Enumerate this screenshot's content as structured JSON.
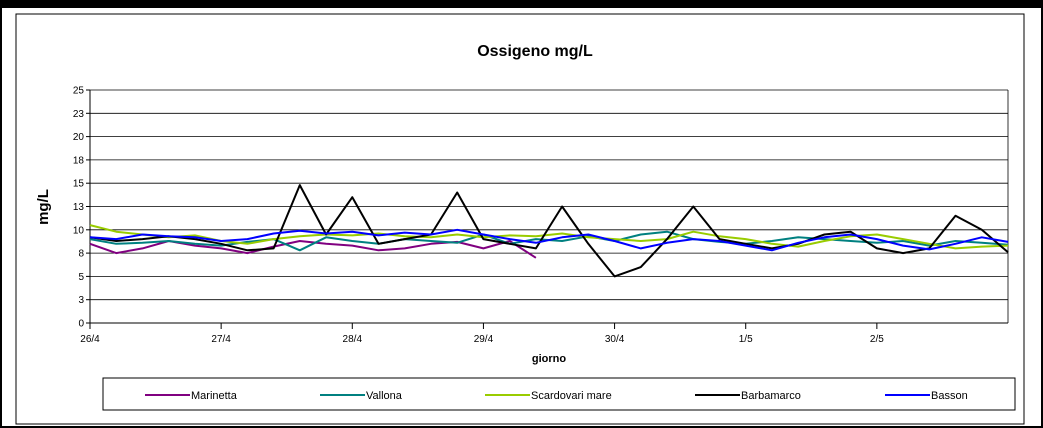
{
  "chart_data": {
    "type": "line",
    "title": "Ossigeno mg/L",
    "y_label": "mg/L",
    "x_label": "giorno",
    "x": [
      0,
      0.2,
      0.4,
      0.6,
      0.8,
      1.0,
      1.2,
      1.4,
      1.6,
      1.8,
      2.0,
      2.2,
      2.4,
      2.6,
      2.8,
      3.0,
      3.2,
      3.4,
      3.6,
      3.8,
      4.0,
      4.2,
      4.4,
      4.6,
      4.8,
      5.0,
      5.2,
      5.4,
      5.6,
      5.8,
      6.0,
      6.2,
      6.4,
      6.6,
      6.8,
      7.0
    ],
    "xlim": [
      0,
      7
    ],
    "xticks": [
      {
        "value": 0,
        "label": "26/4"
      },
      {
        "value": 1,
        "label": "27/4"
      },
      {
        "value": 2,
        "label": "28/4"
      },
      {
        "value": 3,
        "label": "29/4"
      },
      {
        "value": 4,
        "label": "30/4"
      },
      {
        "value": 5,
        "label": "1/5"
      },
      {
        "value": 6,
        "label": "2/5"
      }
    ],
    "ylim": [
      0,
      25
    ],
    "yticks": [
      0,
      {
        "value": 2.5,
        "label": "3"
      },
      5,
      {
        "value": 7.5,
        "label": "8"
      },
      10,
      {
        "value": 12.5,
        "label": "13"
      },
      15,
      {
        "value": 17.5,
        "label": "18"
      },
      20,
      {
        "value": 22.5,
        "label": "23"
      },
      25
    ],
    "grid": true,
    "legend": "bottom",
    "series": [
      {
        "name": "Marinetta",
        "color": "#800080",
        "values": [
          8.5,
          7.5,
          8,
          8.8,
          8.3,
          8,
          7.5,
          8.2,
          8.8,
          8.5,
          8.3,
          7.8,
          8,
          8.5,
          8.7,
          8,
          8.8,
          7,
          null,
          null,
          null,
          null,
          null,
          null,
          null,
          null,
          null,
          null,
          null,
          null,
          null,
          null,
          null,
          null,
          null,
          null
        ]
      },
      {
        "name": "Vallona",
        "color": "#008080",
        "values": [
          9,
          8.5,
          8.6,
          8.8,
          8.5,
          8.3,
          8.7,
          9,
          7.8,
          9.2,
          8.8,
          8.5,
          9,
          8.8,
          8.6,
          9.5,
          8.5,
          9,
          8.8,
          9.3,
          8.8,
          9.5,
          9.8,
          9,
          8.7,
          8.5,
          8.8,
          9.2,
          9,
          8.8,
          8.6,
          8.8,
          8.3,
          8.8,
          8.6,
          8.4
        ]
      },
      {
        "name": "Scardovari mare",
        "color": "#99cc00",
        "values": [
          10.5,
          9.8,
          9.5,
          9.2,
          9.4,
          8.8,
          8.5,
          9,
          9.3,
          9.5,
          9.4,
          9.6,
          9.3,
          9.2,
          9.5,
          9.2,
          9.4,
          9.3,
          9.6,
          9.2,
          9,
          8.8,
          9,
          9.8,
          9.3,
          9,
          8.5,
          8.2,
          8.8,
          9.3,
          9.5,
          9,
          8.5,
          8,
          8.2,
          8.3
        ]
      },
      {
        "name": "Barbamarco",
        "color": "#000000",
        "values": [
          9.2,
          8.8,
          9,
          9.3,
          9,
          8.5,
          7.8,
          8,
          14.8,
          9.5,
          13.5,
          8.5,
          9,
          9.5,
          14,
          9,
          8.5,
          8,
          12.5,
          8.5,
          5,
          6,
          9,
          12.5,
          9,
          8.5,
          8,
          8.5,
          9.5,
          9.8,
          8,
          7.5,
          8,
          11.5,
          10,
          7.6
        ]
      },
      {
        "name": "Basson",
        "color": "#0000ff",
        "values": [
          9.2,
          9,
          9.5,
          9.3,
          9.2,
          8.8,
          9,
          9.6,
          9.9,
          9.6,
          9.8,
          9.4,
          9.7,
          9.5,
          10,
          9.5,
          9,
          8.6,
          9.2,
          9.5,
          8.8,
          8,
          8.6,
          9,
          8.8,
          8.3,
          7.8,
          8.6,
          9.2,
          9.5,
          9,
          8.3,
          7.9,
          8.5,
          9.2,
          8.7
        ]
      }
    ]
  }
}
